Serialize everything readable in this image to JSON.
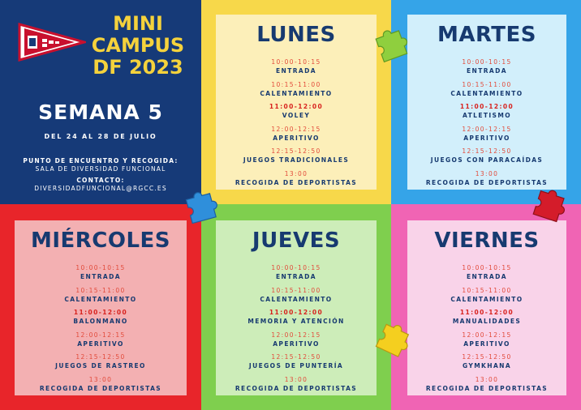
{
  "intro": {
    "title_lines": [
      "MINI",
      "CAMPUS",
      "DF 2023"
    ],
    "week": "SEMANA 5",
    "dates": "DEL 24 AL 28 DE JULIO",
    "meeting_label": "PUNTO DE ENCUENTRO Y RECOGIDA:",
    "meeting_value": "SALA DE DIVERSIDAD FUNCIONAL",
    "contact_label": "CONTACTO:",
    "contact_value": "DIVERSIDADFUNCIONAL@RGCC.ES"
  },
  "colors": {
    "intro_bg": "#163a78",
    "lunes": "#f7d84a",
    "martes": "#35a4e8",
    "miercoles": "#e8252a",
    "jueves": "#7fcf4e",
    "viernes": "#f064b4",
    "title_text": "#173a70",
    "time_text": "#e24a3a"
  },
  "days": {
    "lunes": {
      "name": "LUNES",
      "slots": [
        {
          "time": "10:00-10:15",
          "activity": "ENTRADA"
        },
        {
          "time": "10:15-11:00",
          "activity": "CALENTAMIENTO"
        },
        {
          "time": "11:00-12:00",
          "activity": "VOLEY"
        },
        {
          "time": "12:00-12:15",
          "activity": "APERITIVO"
        },
        {
          "time": "12:15-12:50",
          "activity": "JUEGOS TRADICIONALES"
        },
        {
          "time": "13:00",
          "activity": "RECOGIDA DE DEPORTISTAS"
        }
      ]
    },
    "martes": {
      "name": "MARTES",
      "slots": [
        {
          "time": "10:00-10:15",
          "activity": "ENTRADA"
        },
        {
          "time": "10:15-11:00",
          "activity": "CALENTAMIENTO"
        },
        {
          "time": "11:00-12:00",
          "activity": "ATLETISMO"
        },
        {
          "time": "12:00-12:15",
          "activity": "APERITIVO"
        },
        {
          "time": "12:15-12:50",
          "activity": "JUEGOS CON PARACAÍDAS"
        },
        {
          "time": "13:00",
          "activity": "RECOGIDA DE DEPORTISTAS"
        }
      ]
    },
    "miercoles": {
      "name": "MIÉRCOLES",
      "slots": [
        {
          "time": "10:00-10:15",
          "activity": "ENTRADA"
        },
        {
          "time": "10:15-11:00",
          "activity": "CALENTAMIENTO"
        },
        {
          "time": "11:00-12:00",
          "activity": "BALONMANO"
        },
        {
          "time": "12:00-12:15",
          "activity": "APERITIVO"
        },
        {
          "time": "12:15-12:50",
          "activity": "JUEGOS DE RASTREO"
        },
        {
          "time": "13:00",
          "activity": "RECOGIDA DE DEPORTISTAS"
        }
      ]
    },
    "jueves": {
      "name": "JUEVES",
      "slots": [
        {
          "time": "10:00-10:15",
          "activity": "ENTRADA"
        },
        {
          "time": "10:15-11:00",
          "activity": "CALENTAMIENTO"
        },
        {
          "time": "11:00-12:00",
          "activity": "MEMORIA Y ATENCIÓN"
        },
        {
          "time": "12:00-12:15",
          "activity": "APERITIVO"
        },
        {
          "time": "12:15-12:50",
          "activity": "JUEGOS DE PUNTERÍA"
        },
        {
          "time": "13:00",
          "activity": "RECOGIDA DE DEPORTISTAS"
        }
      ]
    },
    "viernes": {
      "name": "VIERNES",
      "slots": [
        {
          "time": "10:00-10:15",
          "activity": "ENTRADA"
        },
        {
          "time": "10:15-11:00",
          "activity": "CALENTAMIENTO"
        },
        {
          "time": "11:00-12:00",
          "activity": "MANUALIDADES"
        },
        {
          "time": "12:00-12:15",
          "activity": "APERITIVO"
        },
        {
          "time": "12:15-12:50",
          "activity": "GYMKHANA"
        },
        {
          "time": "13:00",
          "activity": "RECOGIDA DE DEPORTISTAS"
        }
      ]
    }
  },
  "decorations": {
    "logo": "club-pennant-icon",
    "puzzle_pieces": [
      "green-puzzle-piece-icon",
      "blue-puzzle-piece-icon",
      "red-puzzle-piece-icon",
      "yellow-puzzle-piece-icon"
    ]
  }
}
